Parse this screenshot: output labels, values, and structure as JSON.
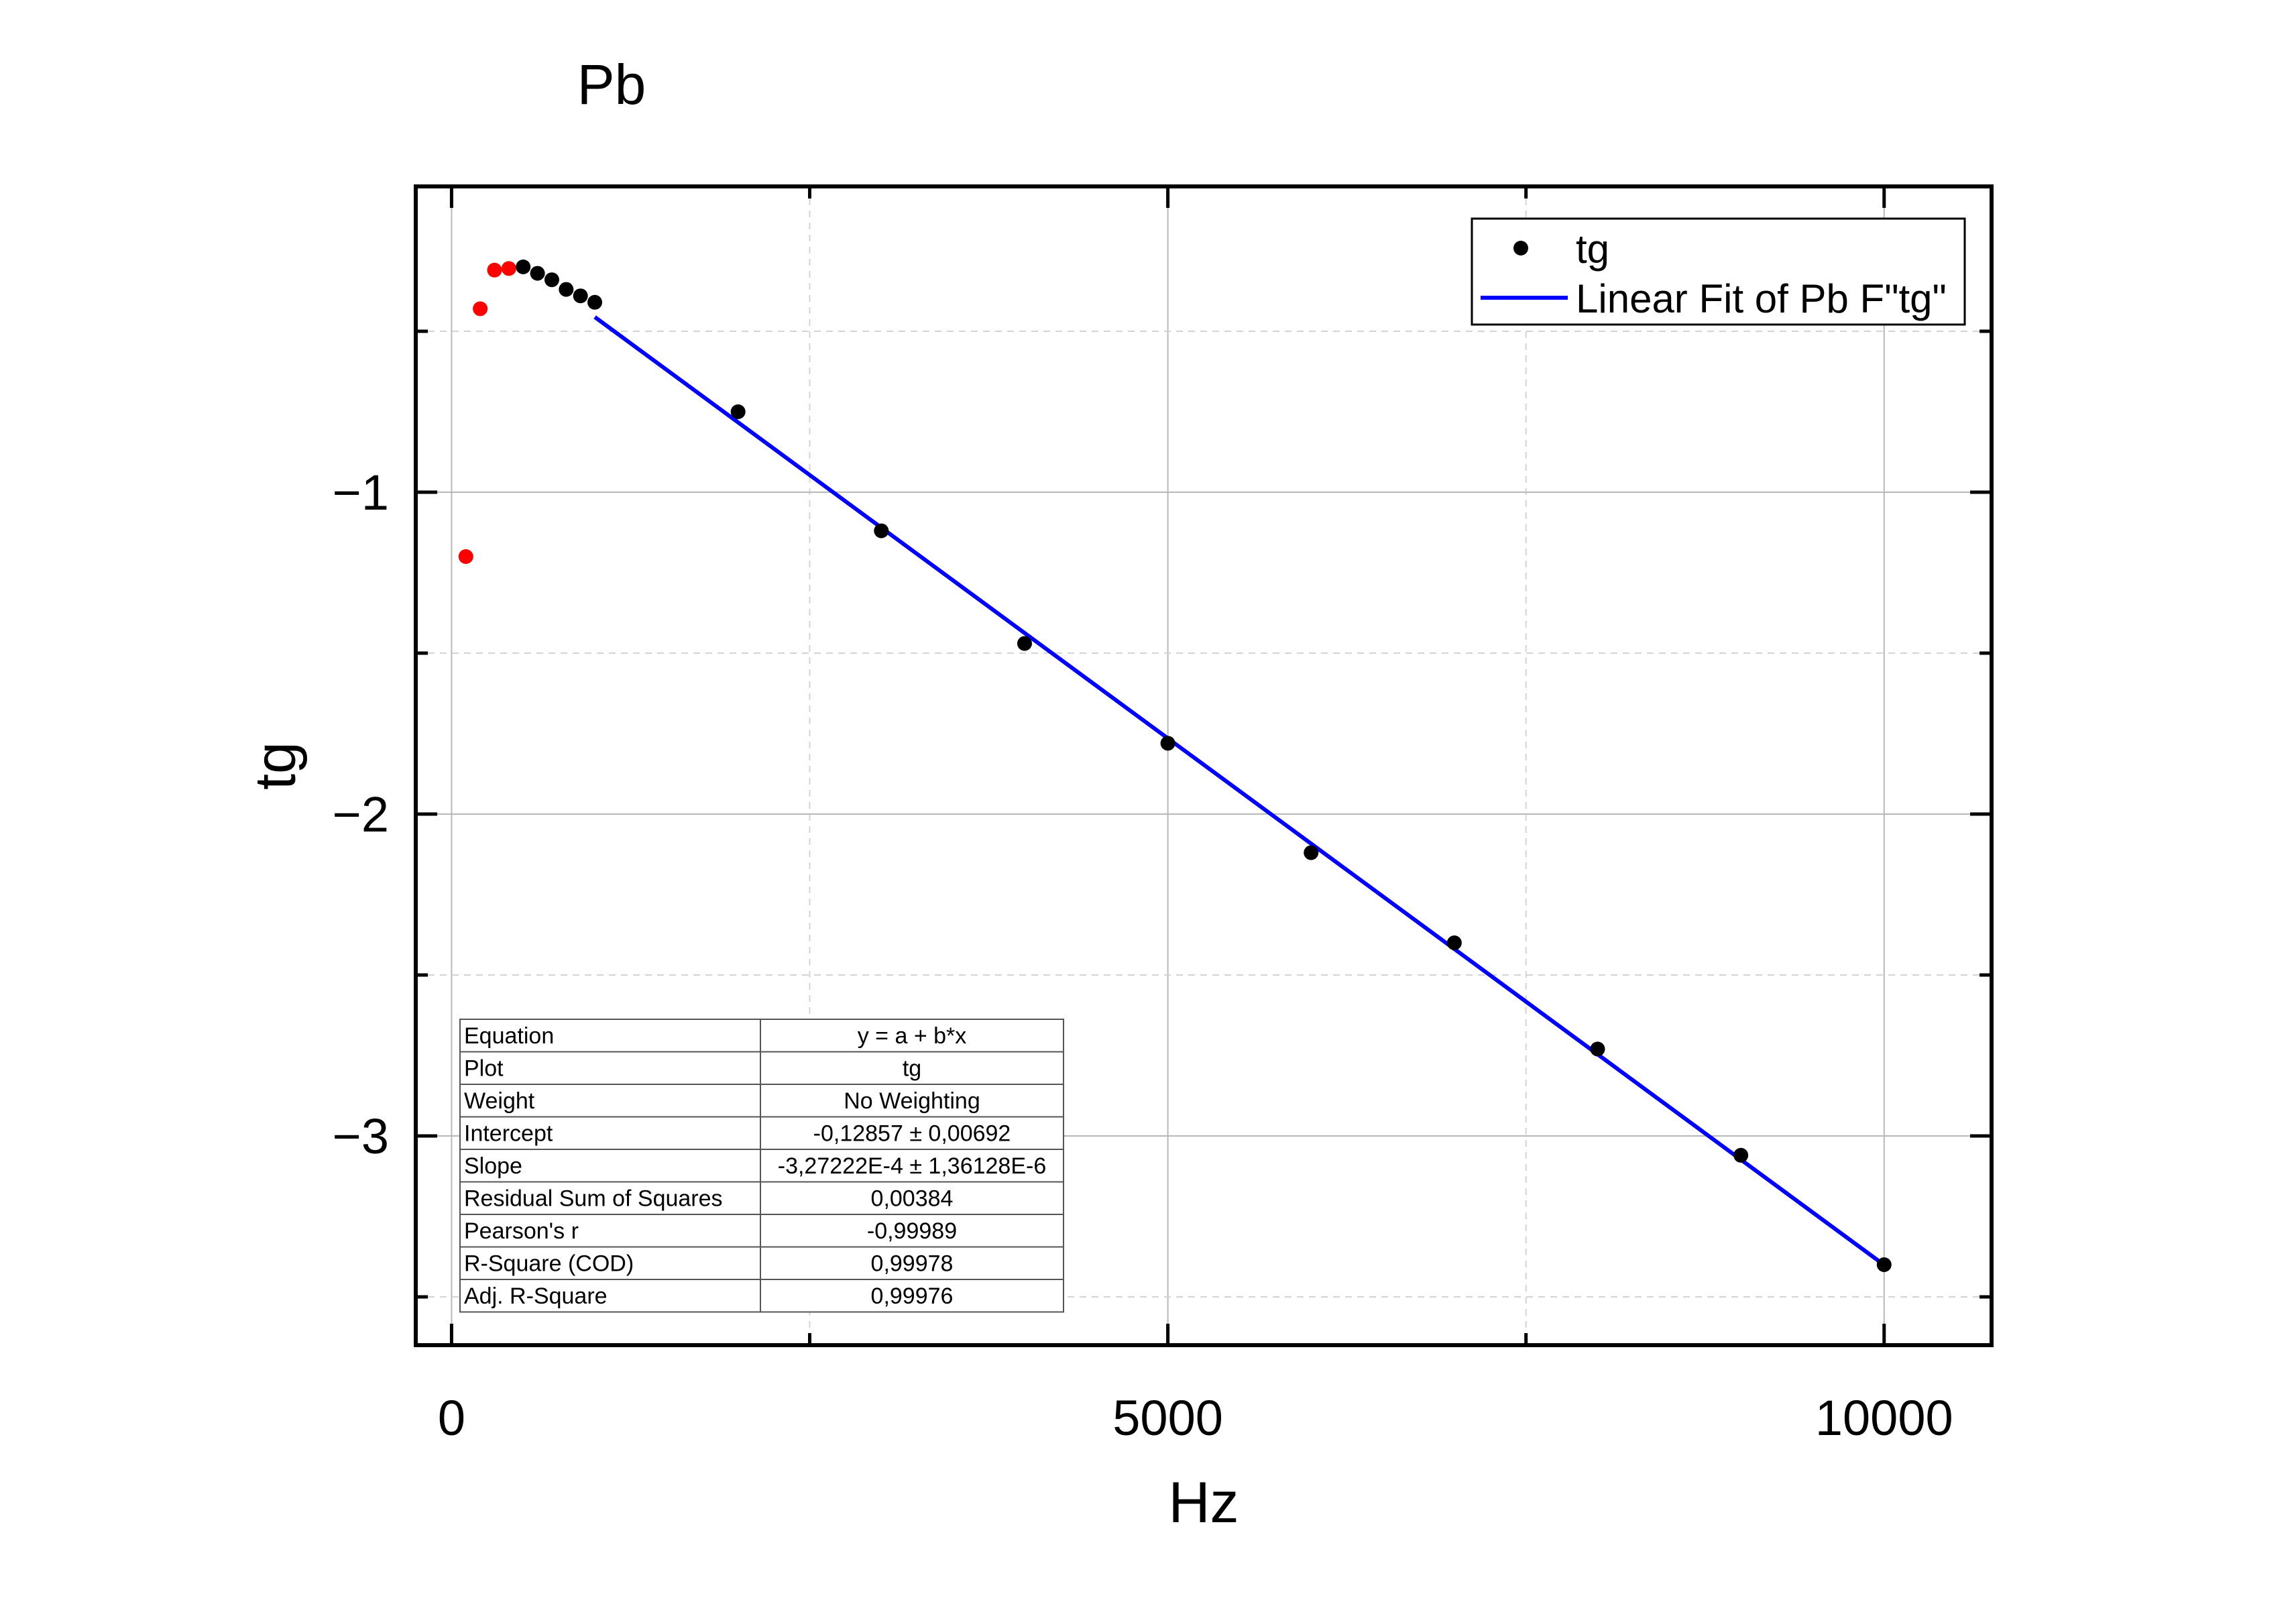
{
  "chart_data": {
    "type": "scatter",
    "title": "Pb",
    "xlabel": "Hz",
    "ylabel": "tg",
    "xlim": [
      -250,
      10750
    ],
    "ylim": [
      -3.65,
      -0.05
    ],
    "xticks": [
      0,
      5000,
      10000
    ],
    "xtick_labels": [
      "0",
      "5000",
      "10000"
    ],
    "xticks_minor": [
      2500,
      7500
    ],
    "yticks": [
      -1,
      -2,
      -3
    ],
    "ytick_labels": [
      "−1",
      "−2",
      "−3"
    ],
    "yticks_minor": [
      -0.5,
      -1.5,
      -2.5,
      -3.5
    ],
    "grid": true,
    "legend_position": "top-right",
    "series": [
      {
        "name": "tg",
        "color": "#000000",
        "x": [
          500,
          600,
          700,
          800,
          900,
          1000,
          2000,
          3000,
          4000,
          5000,
          6000,
          7000,
          8000,
          9000,
          10000
        ],
        "y": [
          -0.3,
          -0.32,
          -0.34,
          -0.37,
          -0.39,
          -0.41,
          -0.75,
          -1.12,
          -1.47,
          -1.78,
          -2.12,
          -2.4,
          -2.73,
          -3.06,
          -3.4
        ]
      },
      {
        "color": "#ff0000",
        "x": [
          100,
          200,
          300,
          400
        ],
        "y": [
          -1.2,
          -0.43,
          -0.31,
          -0.305
        ]
      },
      {
        "name": "Linear Fit of Pb F\"tg\"",
        "type": "line",
        "color": "#0000ff",
        "x": [
          1000,
          10000
        ],
        "y": [
          -0.45579,
          -3.40079
        ]
      }
    ],
    "fit_table": {
      "rows": [
        [
          "Equation",
          "y = a + b*x"
        ],
        [
          "Plot",
          "tg"
        ],
        [
          "Weight",
          "No Weighting"
        ],
        [
          "Intercept",
          "-0,12857 ± 0,00692"
        ],
        [
          "Slope",
          "-3,27222E-4 ± 1,36128E-6"
        ],
        [
          "Residual Sum of Squares",
          "0,00384"
        ],
        [
          "Pearson's r",
          "-0,99989"
        ],
        [
          "R-Square (COD)",
          "0,99978"
        ],
        [
          "Adj. R-Square",
          "0,99976"
        ]
      ]
    }
  }
}
